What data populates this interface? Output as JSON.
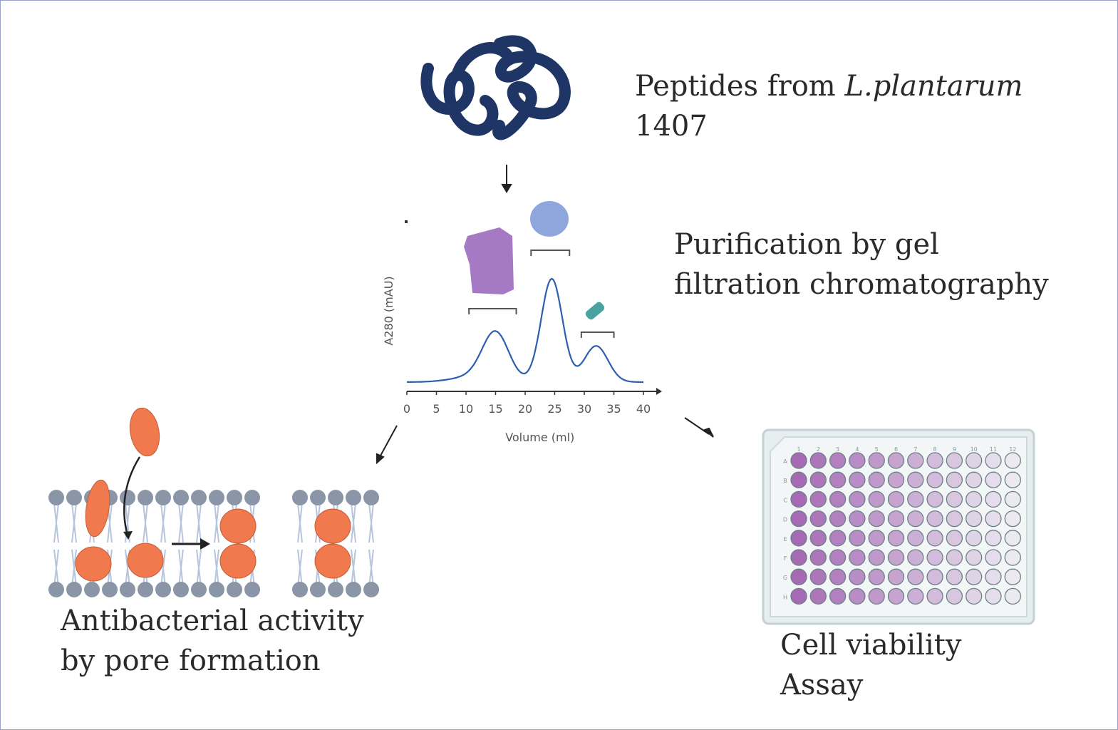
{
  "steps": {
    "source": {
      "line1_prefix": "Peptides from ",
      "line1_italic": "L.plantarum",
      "line2": "1407"
    },
    "purification": {
      "line1": "Purification by gel",
      "line2": "filtration chromatography"
    },
    "antibacterial": {
      "line1": "Antibacterial activity",
      "line2": "by pore formation"
    },
    "viability": {
      "line1": "Cell viability",
      "line2": "Assay"
    }
  },
  "chart_data": {
    "type": "line",
    "xlabel": "Volume (ml)",
    "ylabel": "A280 (mAU)",
    "xticks": [
      "0",
      "5",
      "10",
      "15",
      "20",
      "25",
      "30",
      "35",
      "40"
    ],
    "xlim": [
      0,
      40
    ],
    "peaks": [
      {
        "x": 15,
        "height": 0.45
      },
      {
        "x": 24.5,
        "height": 1.0
      },
      {
        "x": 32,
        "height": 0.35
      }
    ],
    "colors": {
      "line": "#2d5fb0",
      "large_protein": "#a679c4",
      "medium_protein": "#8fa6dc",
      "small_peptide": "#4aa3a0"
    }
  },
  "plate": {
    "columns": [
      "1",
      "2",
      "3",
      "4",
      "5",
      "6",
      "7",
      "8",
      "9",
      "10",
      "11",
      "12"
    ],
    "rows": [
      "A",
      "B",
      "C",
      "D",
      "E",
      "F",
      "G",
      "H"
    ],
    "well_color": "#a05fae"
  },
  "colors": {
    "peptide_coil": "#1e3566",
    "pore_peptide": "#f07a4e",
    "lipid_head": "#8a95a8",
    "lipid_tail": "#b7c4de"
  }
}
